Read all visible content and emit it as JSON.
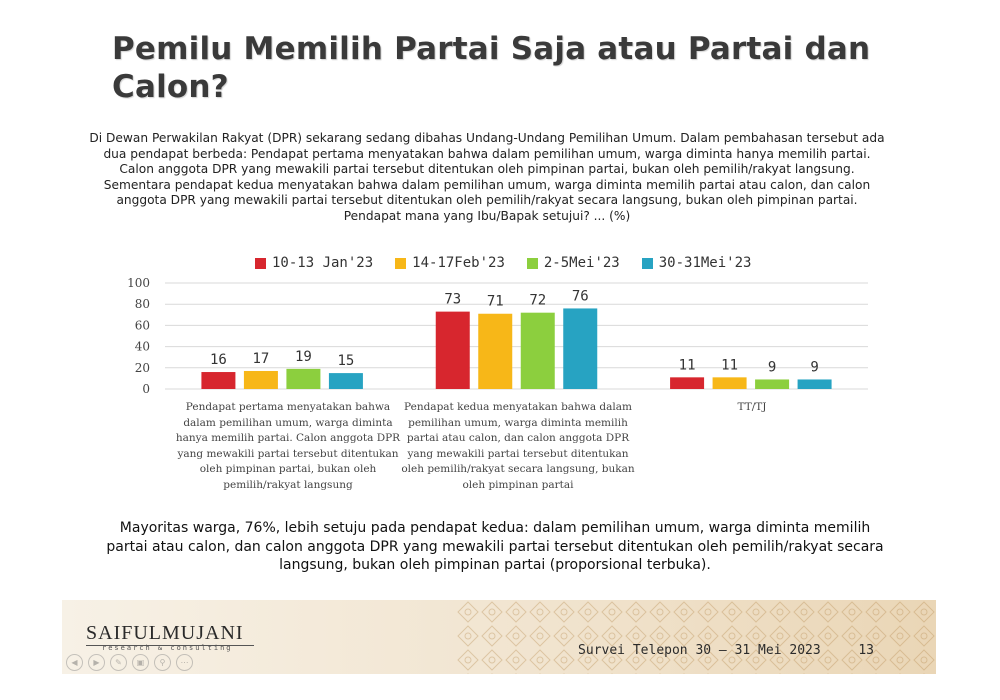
{
  "slide": {
    "title": "Pemilu Memilih Partai Saja atau Partai dan Calon?",
    "question": "Di Dewan Perwakilan Rakyat (DPR) sekarang sedang dibahas Undang-Undang Pemilihan Umum. Dalam pembahasan tersebut ada dua pendapat berbeda: Pendapat pertama menyatakan bahwa dalam pemilihan umum, warga diminta hanya memilih partai. Calon anggota DPR yang mewakili partai tersebut ditentukan oleh pimpinan partai, bukan oleh pemilih/rakyat langsung. Sementara pendapat kedua menyatakan bahwa dalam pemilihan umum, warga diminta memilih partai atau calon, dan calon anggota DPR yang mewakili partai tersebut ditentukan oleh pemilih/rakyat secara langsung, bukan oleh pimpinan partai. Pendapat mana yang Ibu/Bapak setujui? ... (%)",
    "conclusion": "Mayoritas warga, 76%, lebih setuju pada pendapat kedua: dalam pemilihan umum, warga diminta memilih partai atau calon, dan calon anggota DPR yang mewakili partai tersebut ditentukan oleh pemilih/rakyat secara langsung, bukan oleh pimpinan partai (proporsional terbuka)."
  },
  "chart_data": {
    "type": "bar",
    "categories": [
      "Pendapat pertama menyatakan bahwa dalam pemilihan umum, warga diminta hanya memilih partai. Calon anggota DPR yang mewakili partai tersebut ditentukan oleh pimpinan partai, bukan oleh pemilih/rakyat langsung",
      "Pendapat kedua menyatakan bahwa dalam pemilihan umum, warga diminta memilih partai atau calon, dan calon anggota DPR yang mewakili partai tersebut ditentukan oleh pemilih/rakyat secara langsung, bukan oleh pimpinan partai",
      "TT/TJ"
    ],
    "series": [
      {
        "name": "10-13 Jan'23",
        "color": "#d7262e",
        "values": [
          16,
          73,
          11
        ]
      },
      {
        "name": "14-17Feb'23",
        "color": "#f7b718",
        "values": [
          17,
          71,
          11
        ]
      },
      {
        "name": "2-5Mei'23",
        "color": "#8ccf3e",
        "values": [
          19,
          72,
          9
        ]
      },
      {
        "name": "30-31Mei'23",
        "color": "#27a3c2",
        "values": [
          15,
          76,
          9
        ]
      }
    ],
    "yticks": [
      0,
      20,
      40,
      60,
      80,
      100
    ],
    "ylim": [
      0,
      100
    ],
    "legend_position": "top",
    "grid": true
  },
  "footer": {
    "logo": "SAIFULMUJANI",
    "logo_sub": "research & consulting",
    "survey_text": "Survei Telepon 30 – 31 Mei 2023",
    "page": "13"
  }
}
